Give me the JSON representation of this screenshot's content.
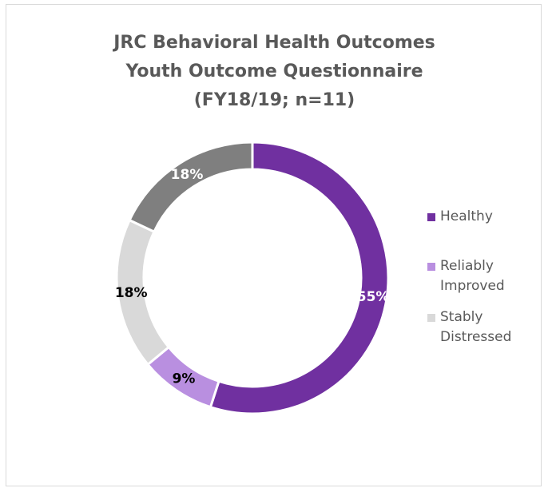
{
  "chart_data": {
    "type": "pie",
    "variant": "donut",
    "title": [
      "JRC Behavioral Health Outcomes",
      "Youth Outcome Questionnaire",
      "(FY18/19; n=11)"
    ],
    "categories": [
      "Healthy",
      "Reliably Improved",
      "Stably Distressed",
      ""
    ],
    "values": [
      55,
      9,
      18,
      18
    ],
    "labels": [
      "55%",
      "9%",
      "18%",
      "18%"
    ],
    "colors": [
      "#7030a0",
      "#b98fe0",
      "#d9d9d9",
      "#7f7f7f"
    ],
    "label_colors": [
      "#ffffff",
      "#000000",
      "#000000",
      "#ffffff"
    ],
    "legend": {
      "placement": "right",
      "items": [
        {
          "label": "Healthy",
          "color": "#7030a0"
        },
        {
          "label": "Reliably Improved",
          "color": "#b98fe0"
        },
        {
          "label": "Stably Distressed",
          "color": "#d9d9d9"
        }
      ]
    }
  }
}
